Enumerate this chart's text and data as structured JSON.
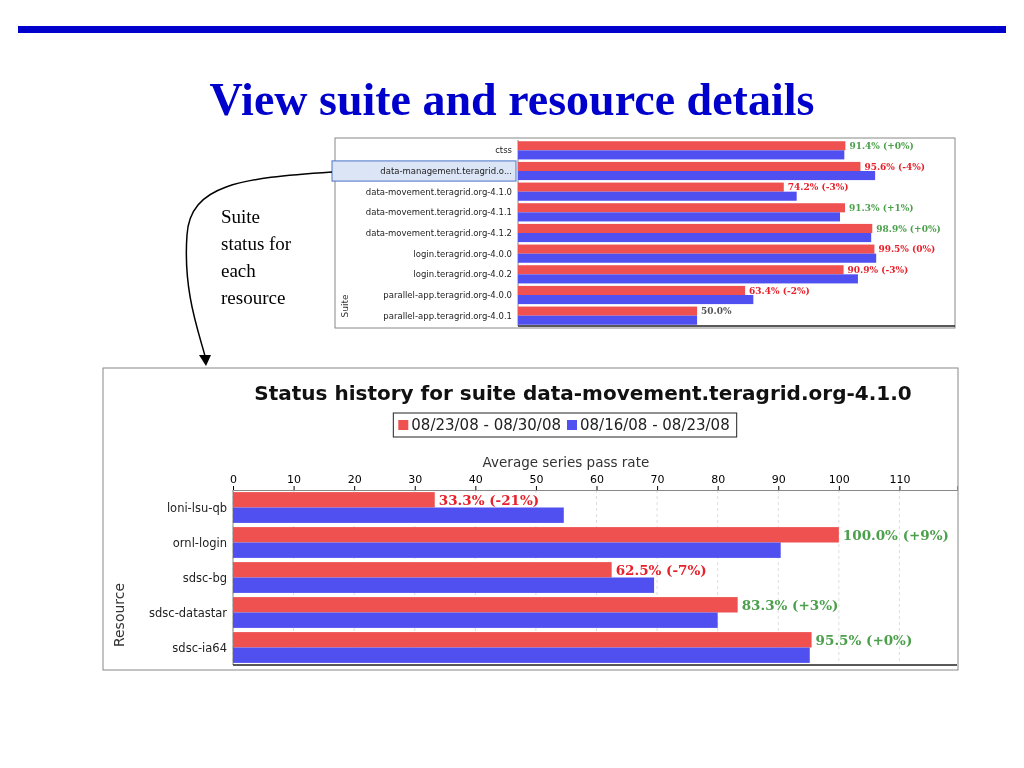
{
  "chart_data": [
    {
      "type": "bar",
      "orientation": "horizontal",
      "title": "View suite and resource details",
      "ylabel": "Suite",
      "categories": [
        "ctss",
        "data-management.teragrid.o...",
        "data-movement.teragrid.org-4.1.0",
        "data-movement.teragrid.org-4.1.1",
        "data-movement.teragrid.org-4.1.2",
        "login.teragrid.org-4.0.0",
        "login.teragrid.org-4.0.2",
        "parallel-app.teragrid.org-4.0.0",
        "parallel-app.teragrid.org-4.0.1"
      ],
      "xlim": [
        0,
        122
      ],
      "series": [
        {
          "color": "#ef5050",
          "values": [
            91.4,
            95.6,
            74.2,
            91.3,
            98.9,
            99.5,
            90.9,
            63.4,
            50.0
          ],
          "value_labels": [
            "91.4% (+0%)",
            "95.6% (-4%)",
            "74.2% (-3%)",
            "91.3% (+1%)",
            "98.9% (+0%)",
            "99.5% (0%)",
            "90.9% (-3%)",
            "63.4% (-2%)",
            "50.0%"
          ]
        },
        {
          "color": "#5050f0",
          "values": [
            91.1,
            99.7,
            77.8,
            89.9,
            98.6,
            100,
            94.9,
            65.7,
            50.0
          ]
        }
      ],
      "annotations": [
        "Suite status for each resource"
      ],
      "legend": false,
      "tick_labels": "y"
    },
    {
      "type": "bar",
      "orientation": "horizontal",
      "title": "Status history for suite data-movement.teragrid.org-4.1.0",
      "xlabel": "Average series pass rate",
      "ylabel": "Resource",
      "categories": [
        "loni-lsu-qb",
        "ornl-login",
        "sdsc-bg",
        "sdsc-datastar",
        "sdsc-ia64"
      ],
      "xlim": [
        0,
        119.5
      ],
      "xticks": [
        0,
        10,
        20,
        30,
        40,
        50,
        60,
        70,
        80,
        90,
        100,
        110
      ],
      "series": [
        {
          "name": "08/23/08 - 08/30/08",
          "color": "#ef5050",
          "values": [
            33.3,
            100.0,
            62.5,
            83.3,
            95.5
          ],
          "value_labels": [
            "33.3% (-21%)",
            "100.0% (+9%)",
            "62.5% (-7%)",
            "83.3% (+3%)",
            "95.5% (+0%)"
          ]
        },
        {
          "name": "08/16/08 - 08/23/08",
          "color": "#5050f0",
          "values": [
            54.6,
            90.4,
            69.5,
            80.0,
            95.2
          ]
        }
      ],
      "grid": "x",
      "legend": "top"
    }
  ]
}
